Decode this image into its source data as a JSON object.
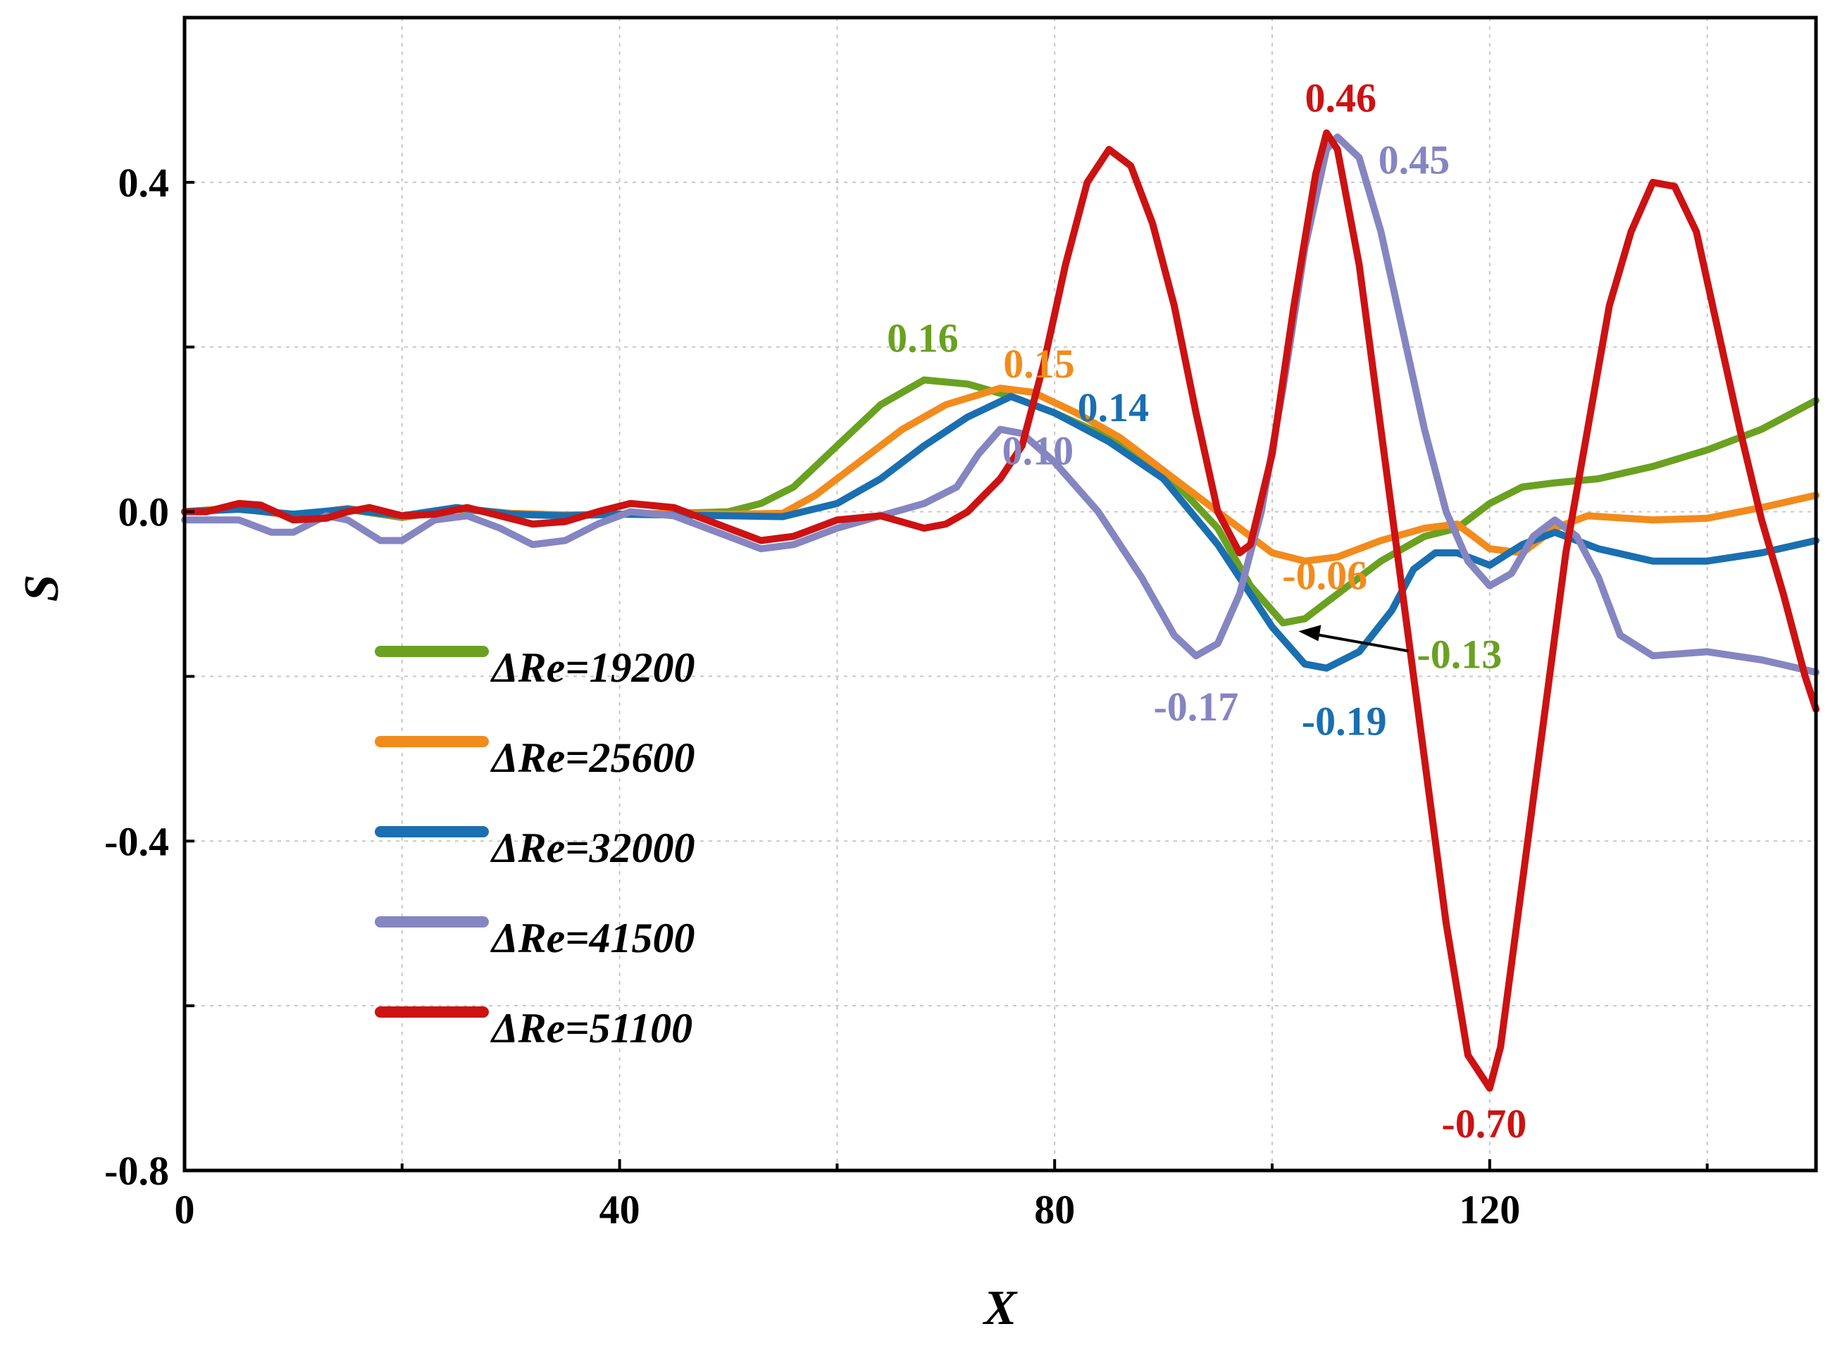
{
  "chart_data": {
    "type": "line",
    "title": "",
    "xlabel": "X",
    "ylabel": "S",
    "xlim": [
      0,
      150
    ],
    "ylim": [
      -0.8,
      0.6
    ],
    "xticks": [
      0,
      40,
      80,
      120
    ],
    "xtick_labels": [
      "0",
      "40",
      "80",
      "120"
    ],
    "yticks": [
      -0.8,
      -0.4,
      0.0,
      0.4
    ],
    "ytick_labels": [
      "-0.8",
      "-0.4",
      "0.0",
      "0.4"
    ],
    "grid": true,
    "legend_position": "left",
    "series": [
      {
        "name": "ΔRe=19200",
        "color": "#6aa121",
        "points": [
          [
            0,
            0
          ],
          [
            5,
            0.005
          ],
          [
            10,
            -0.005
          ],
          [
            15,
            0.003
          ],
          [
            20,
            -0.007
          ],
          [
            25,
            0.003
          ],
          [
            30,
            -0.002
          ],
          [
            35,
            -0.004
          ],
          [
            40,
            -0.003
          ],
          [
            45,
            -0.002
          ],
          [
            50,
            0
          ],
          [
            53,
            0.01
          ],
          [
            56,
            0.03
          ],
          [
            60,
            0.08
          ],
          [
            64,
            0.13
          ],
          [
            68,
            0.16
          ],
          [
            72,
            0.155
          ],
          [
            76,
            0.14
          ],
          [
            80,
            0.12
          ],
          [
            85,
            0.09
          ],
          [
            90,
            0.05
          ],
          [
            95,
            -0.02
          ],
          [
            98,
            -0.09
          ],
          [
            101,
            -0.135
          ],
          [
            103,
            -0.13
          ],
          [
            106,
            -0.1
          ],
          [
            110,
            -0.06
          ],
          [
            114,
            -0.03
          ],
          [
            117,
            -0.02
          ],
          [
            120,
            0.01
          ],
          [
            123,
            0.03
          ],
          [
            126,
            0.035
          ],
          [
            130,
            0.04
          ],
          [
            135,
            0.055
          ],
          [
            140,
            0.075
          ],
          [
            145,
            0.1
          ],
          [
            150,
            0.135
          ]
        ]
      },
      {
        "name": "ΔRe=25600",
        "color": "#f28b1c",
        "points": [
          [
            0,
            0
          ],
          [
            5,
            0.004
          ],
          [
            10,
            -0.005
          ],
          [
            15,
            0.004
          ],
          [
            20,
            -0.006
          ],
          [
            25,
            0.004
          ],
          [
            30,
            -0.002
          ],
          [
            35,
            -0.004
          ],
          [
            40,
            -0.003
          ],
          [
            45,
            -0.002
          ],
          [
            50,
            -0.003
          ],
          [
            55,
            -0.002
          ],
          [
            58,
            0.02
          ],
          [
            62,
            0.06
          ],
          [
            66,
            0.1
          ],
          [
            70,
            0.13
          ],
          [
            75,
            0.15
          ],
          [
            78,
            0.145
          ],
          [
            82,
            0.12
          ],
          [
            86,
            0.09
          ],
          [
            90,
            0.05
          ],
          [
            95,
            0
          ],
          [
            100,
            -0.05
          ],
          [
            103,
            -0.06
          ],
          [
            106,
            -0.055
          ],
          [
            110,
            -0.035
          ],
          [
            114,
            -0.02
          ],
          [
            117,
            -0.015
          ],
          [
            120,
            -0.045
          ],
          [
            123,
            -0.05
          ],
          [
            126,
            -0.02
          ],
          [
            129,
            -0.005
          ],
          [
            135,
            -0.01
          ],
          [
            140,
            -0.008
          ],
          [
            145,
            0.005
          ],
          [
            150,
            0.02
          ]
        ]
      },
      {
        "name": "ΔRe=32000",
        "color": "#1a6fb0",
        "points": [
          [
            0,
            0
          ],
          [
            5,
            0.003
          ],
          [
            10,
            -0.003
          ],
          [
            15,
            0.003
          ],
          [
            20,
            -0.005
          ],
          [
            25,
            0.005
          ],
          [
            30,
            -0.003
          ],
          [
            35,
            -0.005
          ],
          [
            40,
            -0.003
          ],
          [
            45,
            -0.004
          ],
          [
            50,
            -0.005
          ],
          [
            55,
            -0.006
          ],
          [
            60,
            0.01
          ],
          [
            64,
            0.04
          ],
          [
            68,
            0.08
          ],
          [
            72,
            0.115
          ],
          [
            76,
            0.14
          ],
          [
            80,
            0.12
          ],
          [
            85,
            0.085
          ],
          [
            90,
            0.04
          ],
          [
            95,
            -0.04
          ],
          [
            100,
            -0.14
          ],
          [
            103,
            -0.185
          ],
          [
            105,
            -0.19
          ],
          [
            108,
            -0.17
          ],
          [
            111,
            -0.12
          ],
          [
            113,
            -0.07
          ],
          [
            115,
            -0.05
          ],
          [
            117,
            -0.05
          ],
          [
            120,
            -0.065
          ],
          [
            123,
            -0.04
          ],
          [
            126,
            -0.025
          ],
          [
            130,
            -0.045
          ],
          [
            135,
            -0.06
          ],
          [
            140,
            -0.06
          ],
          [
            145,
            -0.05
          ],
          [
            150,
            -0.035
          ]
        ]
      },
      {
        "name": "ΔRe=41500",
        "color": "#8585c2",
        "points": [
          [
            0,
            -0.01
          ],
          [
            5,
            -0.01
          ],
          [
            8,
            -0.025
          ],
          [
            10,
            -0.025
          ],
          [
            13,
            -0.005
          ],
          [
            15,
            -0.01
          ],
          [
            18,
            -0.035
          ],
          [
            20,
            -0.035
          ],
          [
            23,
            -0.01
          ],
          [
            26,
            -0.005
          ],
          [
            29,
            -0.02
          ],
          [
            32,
            -0.04
          ],
          [
            35,
            -0.035
          ],
          [
            38,
            -0.015
          ],
          [
            41,
            0
          ],
          [
            45,
            -0.005
          ],
          [
            50,
            -0.03
          ],
          [
            53,
            -0.045
          ],
          [
            56,
            -0.04
          ],
          [
            60,
            -0.02
          ],
          [
            64,
            -0.005
          ],
          [
            68,
            0.01
          ],
          [
            71,
            0.03
          ],
          [
            73,
            0.07
          ],
          [
            75,
            0.1
          ],
          [
            77,
            0.095
          ],
          [
            80,
            0.06
          ],
          [
            84,
            0
          ],
          [
            88,
            -0.08
          ],
          [
            91,
            -0.15
          ],
          [
            93,
            -0.175
          ],
          [
            95,
            -0.16
          ],
          [
            97,
            -0.1
          ],
          [
            99,
            0
          ],
          [
            101,
            0.15
          ],
          [
            103,
            0.32
          ],
          [
            105,
            0.44
          ],
          [
            106,
            0.455
          ],
          [
            108,
            0.43
          ],
          [
            110,
            0.34
          ],
          [
            112,
            0.22
          ],
          [
            114,
            0.1
          ],
          [
            116,
            0
          ],
          [
            118,
            -0.06
          ],
          [
            120,
            -0.09
          ],
          [
            122,
            -0.075
          ],
          [
            124,
            -0.03
          ],
          [
            126,
            -0.01
          ],
          [
            128,
            -0.03
          ],
          [
            130,
            -0.08
          ],
          [
            132,
            -0.15
          ],
          [
            135,
            -0.175
          ],
          [
            140,
            -0.17
          ],
          [
            145,
            -0.18
          ],
          [
            150,
            -0.195
          ]
        ]
      },
      {
        "name": "ΔRe=51100",
        "color": "#cc1212",
        "points": [
          [
            0,
            0
          ],
          [
            2,
            0
          ],
          [
            5,
            0.01
          ],
          [
            7,
            0.008
          ],
          [
            10,
            -0.01
          ],
          [
            13,
            -0.008
          ],
          [
            15,
            0
          ],
          [
            17,
            0.005
          ],
          [
            20,
            -0.005
          ],
          [
            23,
            -0.003
          ],
          [
            26,
            0.005
          ],
          [
            29,
            -0.005
          ],
          [
            32,
            -0.015
          ],
          [
            35,
            -0.012
          ],
          [
            38,
            0
          ],
          [
            41,
            0.01
          ],
          [
            45,
            0.005
          ],
          [
            50,
            -0.02
          ],
          [
            53,
            -0.035
          ],
          [
            56,
            -0.03
          ],
          [
            60,
            -0.01
          ],
          [
            64,
            -0.005
          ],
          [
            68,
            -0.02
          ],
          [
            70,
            -0.015
          ],
          [
            72,
            0
          ],
          [
            75,
            0.04
          ],
          [
            77,
            0.08
          ],
          [
            79,
            0.18
          ],
          [
            81,
            0.3
          ],
          [
            83,
            0.4
          ],
          [
            85,
            0.44
          ],
          [
            87,
            0.42
          ],
          [
            89,
            0.35
          ],
          [
            91,
            0.25
          ],
          [
            93,
            0.12
          ],
          [
            95,
            0
          ],
          [
            97,
            -0.05
          ],
          [
            98,
            -0.04
          ],
          [
            100,
            0.07
          ],
          [
            102,
            0.25
          ],
          [
            104,
            0.41
          ],
          [
            105,
            0.46
          ],
          [
            106,
            0.44
          ],
          [
            108,
            0.3
          ],
          [
            110,
            0.1
          ],
          [
            112,
            -0.1
          ],
          [
            114,
            -0.3
          ],
          [
            116,
            -0.5
          ],
          [
            118,
            -0.66
          ],
          [
            120,
            -0.7
          ],
          [
            121,
            -0.65
          ],
          [
            123,
            -0.45
          ],
          [
            125,
            -0.25
          ],
          [
            127,
            -0.05
          ],
          [
            129,
            0.1
          ],
          [
            131,
            0.25
          ],
          [
            133,
            0.34
          ],
          [
            135,
            0.4
          ],
          [
            137,
            0.395
          ],
          [
            139,
            0.34
          ],
          [
            141,
            0.22
          ],
          [
            143,
            0.1
          ],
          [
            145,
            -0.01
          ],
          [
            147,
            -0.1
          ],
          [
            149,
            -0.2
          ],
          [
            150,
            -0.24
          ]
        ]
      }
    ],
    "annotations": [
      {
        "text": "0.16",
        "series": 0,
        "x": 68,
        "y": 0.16
      },
      {
        "text": "0.15",
        "series": 1,
        "x": 75,
        "y": 0.15
      },
      {
        "text": "0.14",
        "series": 2,
        "x": 76,
        "y": 0.14
      },
      {
        "text": "0.10",
        "series": 3,
        "x": 76,
        "y": 0.1
      },
      {
        "text": "0.46",
        "series": 4,
        "x": 105,
        "y": 0.46
      },
      {
        "text": "0.45",
        "series": 3,
        "x": 106,
        "y": 0.455
      },
      {
        "text": "-0.06",
        "series": 1,
        "x": 103,
        "y": -0.06
      },
      {
        "text": "-0.13",
        "series": 0,
        "x": 101,
        "y": -0.135
      },
      {
        "text": "-0.17",
        "series": 3,
        "x": 93,
        "y": -0.175
      },
      {
        "text": "-0.19",
        "series": 2,
        "x": 105,
        "y": -0.19
      },
      {
        "text": "-0.70",
        "series": 4,
        "x": 120,
        "y": -0.7
      }
    ]
  }
}
